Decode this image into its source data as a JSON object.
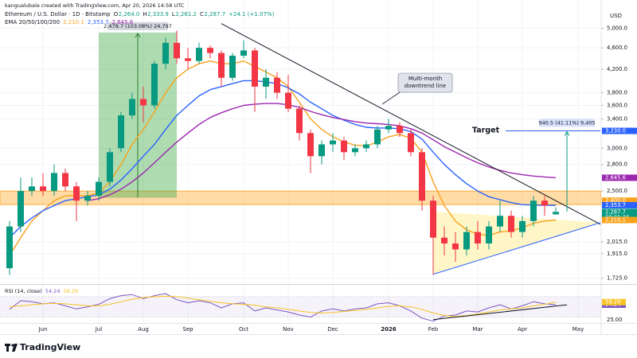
{
  "header": {
    "attribution": "kangualubale created with TradingView.com, Apr 20, 2026 14:58 UTC",
    "currency": "USD",
    "brand": "TradingView"
  },
  "chart_data": [
    {
      "type": "candlestick",
      "title": "Ethereum / U.S. Dollar · 1D · Bitstamp",
      "ohlc_legend": [
        {
          "label": "O",
          "value": "2,264.0"
        },
        {
          "label": "H",
          "value": "2,333.9"
        },
        {
          "label": "L",
          "value": "2,261.2"
        },
        {
          "label": "C",
          "value": "2,287.7"
        }
      ],
      "change": "+24.1 (+1.07%)",
      "indicator": {
        "label": "EMA 20/50/100/200",
        "value_labels": [
          "2,210.1",
          "2,353.7",
          "2,645.6"
        ]
      },
      "categories": [
        null,
        null,
        null,
        "Jun",
        null,
        null,
        null,
        null,
        "Jul",
        null,
        null,
        null,
        "Aug",
        null,
        null,
        null,
        "Sep",
        null,
        null,
        null,
        null,
        "Oct",
        null,
        null,
        null,
        "Nov",
        null,
        null,
        null,
        "Dec",
        null,
        null,
        null,
        null,
        "2026",
        null,
        null,
        null,
        "Feb",
        null,
        null,
        null,
        "Mar",
        null,
        null,
        null,
        "Apr",
        null,
        null,
        null,
        null,
        "May",
        null,
        null
      ],
      "open": [
        1800,
        2150,
        2500,
        2550,
        2500,
        2700,
        2550,
        2400,
        2450,
        2600,
        3000,
        3450,
        3700,
        3600,
        4300,
        4700,
        4400,
        4350,
        4600,
        4500,
        4050,
        4450,
        4550,
        3900,
        4050,
        3800,
        3550,
        3200,
        2900,
        3050,
        3100,
        2950,
        3000,
        3050,
        3250,
        3300,
        3200,
        2950,
        2400,
        2050,
        2000,
        1950,
        2100,
        2000,
        2150,
        2250,
        2100,
        2200,
        2400,
        2264,
        null,
        null,
        null,
        null
      ],
      "high": [
        2200,
        2650,
        2650,
        2700,
        2800,
        2750,
        2600,
        2500,
        2650,
        3000,
        3500,
        3800,
        3900,
        4350,
        4800,
        4950,
        4600,
        4700,
        4650,
        4550,
        4500,
        4750,
        4600,
        4200,
        4150,
        4100,
        3600,
        3250,
        3100,
        3200,
        3150,
        3050,
        3100,
        3300,
        3400,
        3350,
        3250,
        3000,
        2450,
        2150,
        2100,
        2150,
        2200,
        2200,
        2400,
        2300,
        2250,
        2450,
        2450,
        2333.9,
        null,
        null,
        null,
        null
      ],
      "low": [
        1750,
        2100,
        2450,
        2450,
        2450,
        2500,
        2200,
        2350,
        2400,
        2550,
        2950,
        3400,
        3350,
        3550,
        4200,
        4300,
        4200,
        4300,
        4400,
        3900,
        4000,
        4400,
        3500,
        3700,
        3700,
        3500,
        3100,
        2700,
        2800,
        2950,
        2850,
        2900,
        2950,
        3000,
        3200,
        3150,
        2900,
        2300,
        1750,
        1900,
        1850,
        1900,
        1950,
        1950,
        2100,
        2050,
        2050,
        2150,
        2250,
        2261.2,
        null,
        null,
        null,
        null
      ],
      "close": [
        2150,
        2500,
        2550,
        2500,
        2700,
        2550,
        2400,
        2450,
        2600,
        2950,
        3450,
        3700,
        3600,
        4300,
        4700,
        4400,
        4350,
        4600,
        4500,
        4050,
        4450,
        4550,
        3900,
        4050,
        3800,
        3550,
        3200,
        2900,
        3050,
        3100,
        2950,
        3000,
        3050,
        3250,
        3300,
        3200,
        2950,
        2400,
        2050,
        2000,
        1950,
        2100,
        2000,
        2150,
        2250,
        2100,
        2200,
        2400,
        2350,
        2287.7,
        null,
        null,
        null,
        null
      ],
      "up_color": "#089981",
      "down_color": "#f23645",
      "series": [
        {
          "color": "#f7a21b",
          "values": [
            1900,
            2050,
            2200,
            2300,
            2400,
            2450,
            2450,
            2450,
            2480,
            2600,
            2800,
            3050,
            3250,
            3500,
            3800,
            4050,
            4200,
            4300,
            4350,
            4300,
            4300,
            4350,
            4250,
            4150,
            4050,
            3900,
            3650,
            3400,
            3250,
            3150,
            3080,
            3040,
            3030,
            3080,
            3150,
            3180,
            3130,
            2950,
            2600,
            2350,
            2200,
            2120,
            2080,
            2070,
            2100,
            2110,
            2140,
            2180,
            2200,
            2210.1,
            null,
            null,
            null,
            null
          ]
        },
        {
          "color": "#2962ff",
          "values": [
            2050,
            2150,
            2230,
            2300,
            2350,
            2400,
            2420,
            2440,
            2460,
            2520,
            2620,
            2750,
            2900,
            3050,
            3250,
            3450,
            3600,
            3750,
            3850,
            3900,
            3950,
            4000,
            4000,
            3980,
            3950,
            3880,
            3780,
            3650,
            3550,
            3450,
            3380,
            3320,
            3280,
            3270,
            3270,
            3260,
            3220,
            3120,
            2950,
            2800,
            2680,
            2580,
            2500,
            2440,
            2410,
            2380,
            2360,
            2355,
            2353,
            2353.7,
            null,
            null,
            null,
            null
          ]
        },
        {
          "color": "#9c27b0",
          "values": [
            null,
            null,
            null,
            null,
            null,
            null,
            null,
            2400,
            2420,
            2460,
            2520,
            2600,
            2700,
            2820,
            2950,
            3080,
            3200,
            3320,
            3420,
            3490,
            3550,
            3600,
            3620,
            3630,
            3630,
            3610,
            3570,
            3510,
            3460,
            3420,
            3390,
            3360,
            3340,
            3330,
            3320,
            3300,
            3260,
            3200,
            3110,
            3020,
            2950,
            2880,
            2820,
            2770,
            2730,
            2700,
            2680,
            2665,
            2655,
            2645.6,
            null,
            null,
            null,
            null
          ]
        }
      ],
      "ylim": [
        1700,
        5640
      ],
      "log_scale": true,
      "grid": true,
      "yticks": [
        {
          "value": 5000,
          "label": "5,000.0"
        },
        {
          "value": 4600,
          "label": "4,600.0"
        },
        {
          "value": 4200,
          "label": "4,200.0"
        },
        {
          "value": 3800,
          "label": "3,800.0"
        },
        {
          "value": 3600,
          "label": "3,600.0"
        },
        {
          "value": 3400,
          "label": "3,400.0"
        },
        {
          "value": 3000,
          "label": "3,000.0"
        },
        {
          "value": 2800,
          "label": "2,800.0"
        },
        {
          "value": 2500,
          "label": "2,500.0"
        },
        {
          "value": 2015,
          "label": "2,015.0"
        },
        {
          "value": 1915,
          "label": "1,915.0"
        },
        {
          "value": 1725,
          "label": "1,725.0"
        }
      ],
      "zone": [
        2360,
        2500
      ],
      "measure": {
        "x": [
          8,
          15
        ],
        "y": [
          2430,
          4910
        ],
        "label": "2,479.7 (103.08%) 24,797"
      },
      "target": {
        "text": "Target",
        "level": 3230,
        "x": [
          44.5,
          53
        ],
        "arrow_x": 50,
        "arrow_from": 2290,
        "label": "940.5 (41.11%) 9,405"
      },
      "triangle": [
        [
          38,
          2290
        ],
        [
          38,
          1754
        ],
        [
          53,
          2185
        ]
      ],
      "trendlines": [
        {
          "points": [
            [
              19,
              5100
            ],
            [
              53,
              2170
            ]
          ],
          "color": "#131722"
        },
        {
          "points": [
            [
              38,
              1754
            ],
            [
              53,
              2185
            ]
          ],
          "color": "#2962ff"
        }
      ],
      "annotation": {
        "lines": [
          "Multi-month",
          "downtrend line"
        ]
      },
      "price_labels": [
        {
          "value": 3230,
          "label": "3,230.0",
          "color": "#2962ff"
        },
        {
          "value": 2645.6,
          "label": "2,645.6",
          "color": "#9c27b0"
        },
        {
          "value": 2400,
          "label": "2,400.0",
          "color": "#f7a21b"
        },
        {
          "value": 2353.7,
          "label": "2,353.7",
          "color": "#2962ff"
        },
        {
          "value": 2287.7,
          "label": "2,287.7",
          "color": "#089981",
          "countdown": "09:01:25"
        },
        {
          "value": 2210.1,
          "label": "2,210.1",
          "color": "#f7a21b"
        }
      ]
    },
    {
      "type": "line",
      "title": "RSI (14, close)",
      "series": [
        {
          "color": "#7e57c2",
          "values": [
            45,
            62,
            60,
            56,
            58,
            52,
            46,
            50,
            55,
            66,
            72,
            74,
            66,
            72,
            76,
            64,
            58,
            62,
            58,
            48,
            56,
            58,
            42,
            48,
            44,
            40,
            34,
            30,
            42,
            46,
            42,
            46,
            48,
            56,
            58,
            52,
            42,
            28,
            22,
            32,
            34,
            42,
            40,
            48,
            54,
            46,
            52,
            60,
            56,
            54.24,
            null,
            null,
            null,
            null
          ]
        },
        {
          "color": "#f7c325",
          "values": [
            50,
            52,
            54,
            56,
            57,
            56,
            54,
            52,
            52,
            55,
            60,
            65,
            68,
            70,
            71,
            70,
            67,
            64,
            61,
            58,
            56,
            55,
            53,
            50,
            48,
            45,
            42,
            39,
            38,
            39,
            41,
            43,
            45,
            48,
            51,
            52,
            50,
            45,
            38,
            33,
            31,
            33,
            36,
            40,
            44,
            46,
            48,
            52,
            55,
            59.29,
            null,
            null,
            null,
            null
          ]
        }
      ],
      "ylim": [
        20,
        90
      ],
      "yticks": [
        {
          "value": 25,
          "label": "25.00"
        }
      ],
      "band": [
        30,
        70
      ],
      "trendline": [
        [
          38,
          25
        ],
        [
          50,
          54
        ]
      ]
    }
  ]
}
